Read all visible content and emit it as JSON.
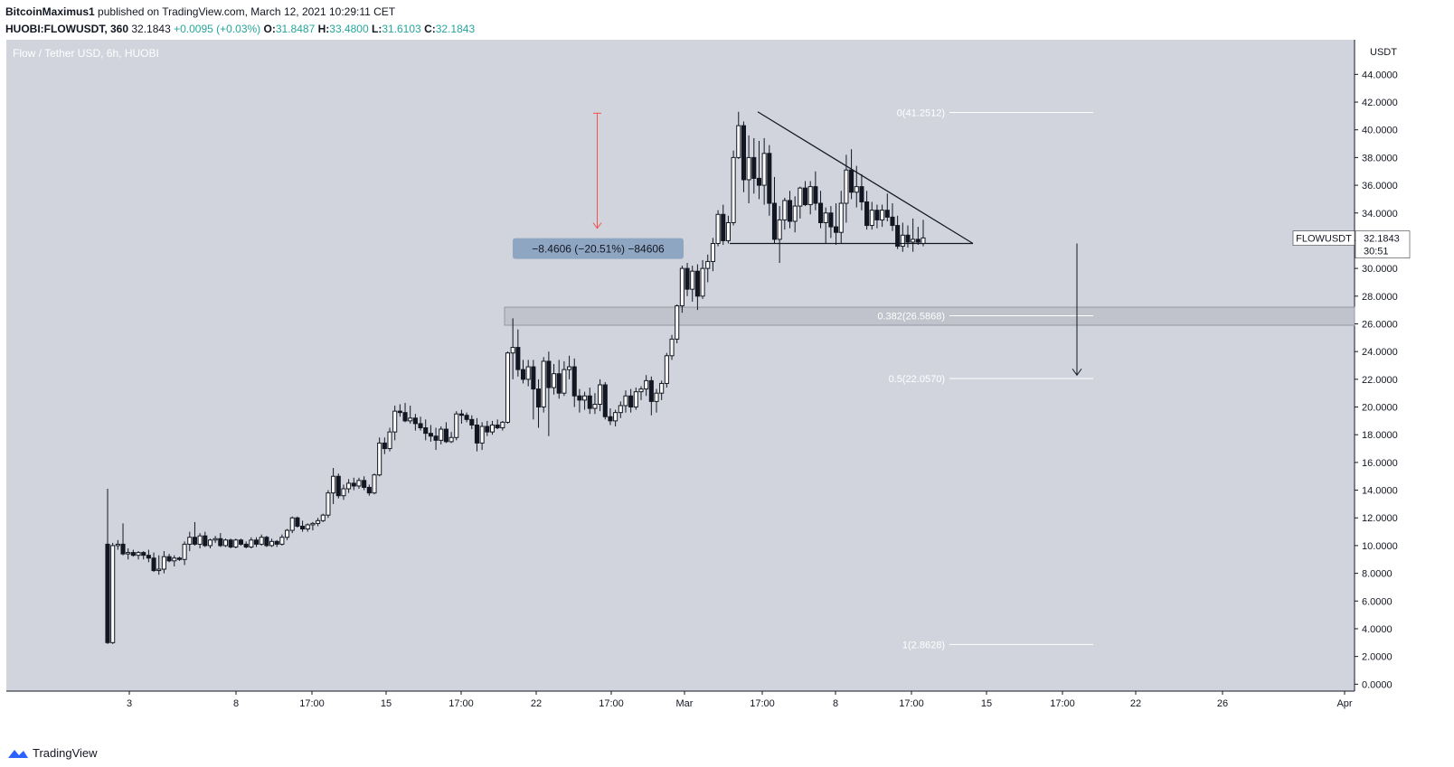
{
  "header": {
    "author": "BitcoinMaximus1",
    "published_text": "published on TradingView.com, March 12, 2021 10:29:11 CET",
    "symbol": "HUOBI:FLOWUSDT, 360",
    "last": "32.1843",
    "change": "+0.0095 (+0.03%)",
    "o_label": "O:",
    "o": "31.8487",
    "h_label": "H:",
    "h": "33.4800",
    "l_label": "L:",
    "l": "31.6103",
    "c_label": "C:",
    "c": "32.1843"
  },
  "footer": {
    "brand": "TradingView"
  },
  "colors": {
    "background": "#d1d4dc",
    "axis_bg": "#ffffff",
    "candle_up": "#ffffff",
    "candle_down": "#131722",
    "measure_arrow": "#ef5350",
    "measure_box": "#8fa6c3",
    "zone": "#b2b5be",
    "green": "#26a69a"
  },
  "chart_data": {
    "type": "candlestick",
    "title": "Flow / Tether USD, 6h, HUOBI",
    "currency_label": "USDT",
    "y_ticks": [
      "0.0000",
      "2.0000",
      "4.0000",
      "6.0000",
      "8.0000",
      "10.0000",
      "12.0000",
      "14.0000",
      "16.0000",
      "18.0000",
      "20.0000",
      "22.0000",
      "24.0000",
      "26.0000",
      "28.0000",
      "30.0000",
      "32.0000",
      "34.0000",
      "36.0000",
      "38.0000",
      "40.0000",
      "42.0000",
      "44.0000"
    ],
    "x_ticks": [
      "3",
      "8",
      "17:00",
      "15",
      "17:00",
      "22",
      "17:00",
      "Mar",
      "17:00",
      "8",
      "17:00",
      "15",
      "17:00",
      "22",
      "26",
      "Apr"
    ],
    "ylim": [
      -0.5,
      46.5
    ],
    "current_price_label": "FLOWUSDT",
    "current_price": "32.1843",
    "countdown": "30:51",
    "fib_levels": [
      {
        "label": "0(41.2512)",
        "value": 41.2512
      },
      {
        "label": "0.382(26.5868)",
        "value": 26.5868
      },
      {
        "label": "0.5(22.0570)",
        "value": 22.057
      },
      {
        "label": "1(2.8628)",
        "value": 2.8628
      }
    ],
    "support_zone": [
      25.9,
      27.2
    ],
    "triangle": {
      "high_point": 41.3,
      "apex_value": 31.8,
      "support_value": 31.8
    },
    "measurement_label": "−8.4606 (−20.51%) −84606",
    "measurement": {
      "from": 41.2,
      "to": 32.9
    },
    "target_arrow": {
      "from": 31.8,
      "to": 22.3
    },
    "candles": [
      [
        10.1,
        14.1,
        2.9,
        3.0
      ],
      [
        3.0,
        10.2,
        2.9,
        10.0
      ],
      [
        10.0,
        10.4,
        9.7,
        10.1
      ],
      [
        10.1,
        11.6,
        9.3,
        9.4
      ],
      [
        9.4,
        9.8,
        9.0,
        9.5
      ],
      [
        9.5,
        9.7,
        9.2,
        9.3
      ],
      [
        9.3,
        9.6,
        9.0,
        9.5
      ],
      [
        9.5,
        9.6,
        9.0,
        9.3
      ],
      [
        9.3,
        9.7,
        8.8,
        9.1
      ],
      [
        9.1,
        9.5,
        8.1,
        8.2
      ],
      [
        8.2,
        9.3,
        7.9,
        8.3
      ],
      [
        8.3,
        9.6,
        8.0,
        9.2
      ],
      [
        9.2,
        9.4,
        8.8,
        8.9
      ],
      [
        8.9,
        9.3,
        8.5,
        9.1
      ],
      [
        9.1,
        9.2,
        8.9,
        9.0
      ],
      [
        9.0,
        10.3,
        8.6,
        10.1
      ],
      [
        10.1,
        11.0,
        9.6,
        10.6
      ],
      [
        10.6,
        11.7,
        10.0,
        10.1
      ],
      [
        10.1,
        10.9,
        9.8,
        10.7
      ],
      [
        10.7,
        11.0,
        9.9,
        10.0
      ],
      [
        10.0,
        10.5,
        9.8,
        10.4
      ],
      [
        10.4,
        10.7,
        10.2,
        10.5
      ],
      [
        10.5,
        10.9,
        9.9,
        10.0
      ],
      [
        10.0,
        10.5,
        9.9,
        10.4
      ],
      [
        10.4,
        10.5,
        9.8,
        9.9
      ],
      [
        9.9,
        10.5,
        9.8,
        10.4
      ],
      [
        10.4,
        10.5,
        10.0,
        10.1
      ],
      [
        10.1,
        10.3,
        9.8,
        9.9
      ],
      [
        9.9,
        10.6,
        9.8,
        10.4
      ],
      [
        10.4,
        10.6,
        9.9,
        10.1
      ],
      [
        10.1,
        10.8,
        10.0,
        10.6
      ],
      [
        10.6,
        10.7,
        9.9,
        10.0
      ],
      [
        10.0,
        10.5,
        9.9,
        10.3
      ],
      [
        10.3,
        10.4,
        9.9,
        10.1
      ],
      [
        10.1,
        10.8,
        10.0,
        10.6
      ],
      [
        10.6,
        11.2,
        10.4,
        11.1
      ],
      [
        11.1,
        12.1,
        10.9,
        12.0
      ],
      [
        12.0,
        12.1,
        11.3,
        11.4
      ],
      [
        11.4,
        11.8,
        11.0,
        11.2
      ],
      [
        11.2,
        11.6,
        11.0,
        11.5
      ],
      [
        11.5,
        11.7,
        11.1,
        11.6
      ],
      [
        11.6,
        12.0,
        11.4,
        11.8
      ],
      [
        11.8,
        12.3,
        11.7,
        12.2
      ],
      [
        12.2,
        14.0,
        12.0,
        13.8
      ],
      [
        13.8,
        15.6,
        13.0,
        15.0
      ],
      [
        15.0,
        15.2,
        13.4,
        13.6
      ],
      [
        13.6,
        14.4,
        13.3,
        14.1
      ],
      [
        14.1,
        14.8,
        13.8,
        14.5
      ],
      [
        14.5,
        14.9,
        14.0,
        14.3
      ],
      [
        14.3,
        14.9,
        14.1,
        14.7
      ],
      [
        14.7,
        15.0,
        14.0,
        14.2
      ],
      [
        14.2,
        14.4,
        13.6,
        13.8
      ],
      [
        13.8,
        15.2,
        13.7,
        15.1
      ],
      [
        15.1,
        17.8,
        15.0,
        17.4
      ],
      [
        17.4,
        17.8,
        16.6,
        17.0
      ],
      [
        17.0,
        18.5,
        16.8,
        18.2
      ],
      [
        18.2,
        20.1,
        17.6,
        19.7
      ],
      [
        19.7,
        20.2,
        19.3,
        19.6
      ],
      [
        19.6,
        20.3,
        18.9,
        19.0
      ],
      [
        19.0,
        20.1,
        18.8,
        19.2
      ],
      [
        19.2,
        19.5,
        18.3,
        18.8
      ],
      [
        18.8,
        19.3,
        18.3,
        18.5
      ],
      [
        18.5,
        19.1,
        17.6,
        18.1
      ],
      [
        18.1,
        18.7,
        17.5,
        17.9
      ],
      [
        17.9,
        18.5,
        16.9,
        17.6
      ],
      [
        17.6,
        18.6,
        17.3,
        18.4
      ],
      [
        18.4,
        18.9,
        17.4,
        17.5
      ],
      [
        17.5,
        18.2,
        17.4,
        17.8
      ],
      [
        17.8,
        19.7,
        17.6,
        19.5
      ],
      [
        19.5,
        19.8,
        18.8,
        19.4
      ],
      [
        19.4,
        19.6,
        18.9,
        19.1
      ],
      [
        19.1,
        19.4,
        18.4,
        18.7
      ],
      [
        18.7,
        19.2,
        16.8,
        17.4
      ],
      [
        17.4,
        18.9,
        16.9,
        18.6
      ],
      [
        18.6,
        19.0,
        17.9,
        18.2
      ],
      [
        18.2,
        19.0,
        18.0,
        18.7
      ],
      [
        18.7,
        19.1,
        18.4,
        18.5
      ],
      [
        18.5,
        19.0,
        18.3,
        18.9
      ],
      [
        18.9,
        24.0,
        18.8,
        23.9
      ],
      [
        23.9,
        26.4,
        22.0,
        24.3
      ],
      [
        24.3,
        25.6,
        22.2,
        22.7
      ],
      [
        22.7,
        23.4,
        21.7,
        22.0
      ],
      [
        22.0,
        23.4,
        21.5,
        22.9
      ],
      [
        22.9,
        23.4,
        19.1,
        21.3
      ],
      [
        21.3,
        22.0,
        18.5,
        20.0
      ],
      [
        20.0,
        23.6,
        19.6,
        23.3
      ],
      [
        23.3,
        24.0,
        17.9,
        21.4
      ],
      [
        21.4,
        23.1,
        20.9,
        22.4
      ],
      [
        22.4,
        23.4,
        20.6,
        21.0
      ],
      [
        21.0,
        23.3,
        20.8,
        22.7
      ],
      [
        22.7,
        23.7,
        22.0,
        22.9
      ],
      [
        22.9,
        23.5,
        20.0,
        20.8
      ],
      [
        20.8,
        21.3,
        19.6,
        20.5
      ],
      [
        20.5,
        21.1,
        19.8,
        20.8
      ],
      [
        20.8,
        21.4,
        19.5,
        19.9
      ],
      [
        19.9,
        21.0,
        19.5,
        20.2
      ],
      [
        20.2,
        22.0,
        19.7,
        21.6
      ],
      [
        21.6,
        21.8,
        19.1,
        19.3
      ],
      [
        19.3,
        19.9,
        18.7,
        19.0
      ],
      [
        19.0,
        19.8,
        18.6,
        19.6
      ],
      [
        19.6,
        20.4,
        19.2,
        20.1
      ],
      [
        20.1,
        21.2,
        19.6,
        20.8
      ],
      [
        20.8,
        21.3,
        19.6,
        20.0
      ],
      [
        20.0,
        21.4,
        19.8,
        21.1
      ],
      [
        21.1,
        21.5,
        20.5,
        21.3
      ],
      [
        21.3,
        22.3,
        20.8,
        21.9
      ],
      [
        21.9,
        22.2,
        19.4,
        20.4
      ],
      [
        20.4,
        21.3,
        19.6,
        21.0
      ],
      [
        21.0,
        21.9,
        20.5,
        21.7
      ],
      [
        21.7,
        23.9,
        21.4,
        23.7
      ],
      [
        23.7,
        25.2,
        23.4,
        24.9
      ],
      [
        24.9,
        27.4,
        24.6,
        27.3
      ],
      [
        27.3,
        30.2,
        26.8,
        30.0
      ],
      [
        30.0,
        30.4,
        28.0,
        28.5
      ],
      [
        28.5,
        30.2,
        27.6,
        29.8
      ],
      [
        29.8,
        30.3,
        27.0,
        28.0
      ],
      [
        28.0,
        30.6,
        27.8,
        30.0
      ],
      [
        30.0,
        31.0,
        29.0,
        30.5
      ],
      [
        30.5,
        32.2,
        29.8,
        31.8
      ],
      [
        31.8,
        34.2,
        31.6,
        33.9
      ],
      [
        33.9,
        34.6,
        31.7,
        32.0
      ],
      [
        32.0,
        33.8,
        31.8,
        33.3
      ],
      [
        33.3,
        38.5,
        33.1,
        38.0
      ],
      [
        38.0,
        41.3,
        37.9,
        40.3
      ],
      [
        40.3,
        40.6,
        35.5,
        36.4
      ],
      [
        36.4,
        39.6,
        34.7,
        38.0
      ],
      [
        38.0,
        39.4,
        35.4,
        36.5
      ],
      [
        36.5,
        39.2,
        35.0,
        36.0
      ],
      [
        36.0,
        39.4,
        34.6,
        38.3
      ],
      [
        38.3,
        38.9,
        33.8,
        34.7
      ],
      [
        34.7,
        36.6,
        31.8,
        32.1
      ],
      [
        32.1,
        34.5,
        30.4,
        33.5
      ],
      [
        33.5,
        35.1,
        32.8,
        34.9
      ],
      [
        34.9,
        35.6,
        32.9,
        33.4
      ],
      [
        33.4,
        35.2,
        32.6,
        34.5
      ],
      [
        34.5,
        35.9,
        33.6,
        35.8
      ],
      [
        35.8,
        36.3,
        34.5,
        34.6
      ],
      [
        34.6,
        36.3,
        33.9,
        35.9
      ],
      [
        35.9,
        37.0,
        34.2,
        34.7
      ],
      [
        34.7,
        35.6,
        32.9,
        33.3
      ],
      [
        33.3,
        34.4,
        31.8,
        34.0
      ],
      [
        34.0,
        34.5,
        32.2,
        33.0
      ],
      [
        33.0,
        34.7,
        31.7,
        32.6
      ],
      [
        32.6,
        35.6,
        31.8,
        34.7
      ],
      [
        34.7,
        38.2,
        33.3,
        37.1
      ],
      [
        37.1,
        38.6,
        35.0,
        35.5
      ],
      [
        35.5,
        37.4,
        34.4,
        35.9
      ],
      [
        35.9,
        36.8,
        34.2,
        34.8
      ],
      [
        34.8,
        35.6,
        32.8,
        33.1
      ],
      [
        33.1,
        34.8,
        32.8,
        34.2
      ],
      [
        34.2,
        34.6,
        32.9,
        33.5
      ],
      [
        33.5,
        34.6,
        33.0,
        34.2
      ],
      [
        34.2,
        35.4,
        33.4,
        33.7
      ],
      [
        33.7,
        34.7,
        32.7,
        33.1
      ],
      [
        33.1,
        33.8,
        31.4,
        31.6
      ],
      [
        31.6,
        33.3,
        31.2,
        32.4
      ],
      [
        32.4,
        33.1,
        31.5,
        31.9
      ],
      [
        31.9,
        33.6,
        31.2,
        32.1
      ],
      [
        32.1,
        33.0,
        31.7,
        31.9
      ],
      [
        31.8,
        33.5,
        31.6,
        32.2
      ]
    ],
    "candle_x_range": [
      119,
      1021
    ]
  }
}
